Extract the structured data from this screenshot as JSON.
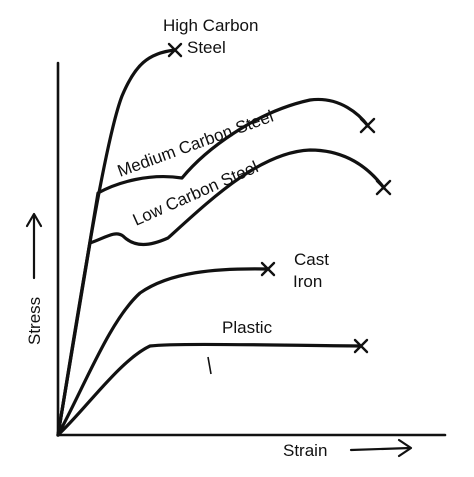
{
  "axes": {
    "x_label": "Strain",
    "y_label": "Stress"
  },
  "curves": [
    {
      "id": "high-carbon-steel",
      "label_lines": [
        "High Carbon",
        "Steel"
      ]
    },
    {
      "id": "medium-carbon-steel",
      "label_lines": [
        "Medium Carbon Steel"
      ]
    },
    {
      "id": "low-carbon-steel",
      "label_lines": [
        "Low Carbon Steel"
      ]
    },
    {
      "id": "cast-iron",
      "label_lines": [
        "Cast",
        "Iron"
      ]
    },
    {
      "id": "plastic",
      "label_lines": [
        "Plastic"
      ]
    }
  ],
  "colors": {
    "ink": "#111111",
    "background": "#ffffff"
  }
}
